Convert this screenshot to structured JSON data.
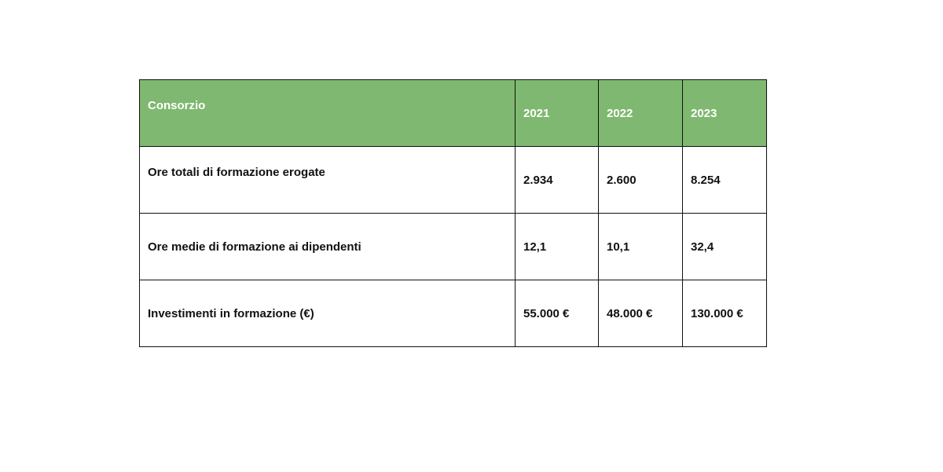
{
  "table": {
    "header": [
      "Consorzio",
      "2021",
      "2022",
      "2023"
    ],
    "rows": [
      [
        "Ore totali di formazione erogate",
        "2.934",
        "2.600",
        "8.254"
      ],
      [
        "Ore medie di formazione ai dipendenti",
        "12,1",
        "10,1",
        "32,4"
      ],
      [
        "Investimenti in formazione (€)",
        "55.000 €",
        "48.000 €",
        "130.000 €"
      ]
    ]
  }
}
